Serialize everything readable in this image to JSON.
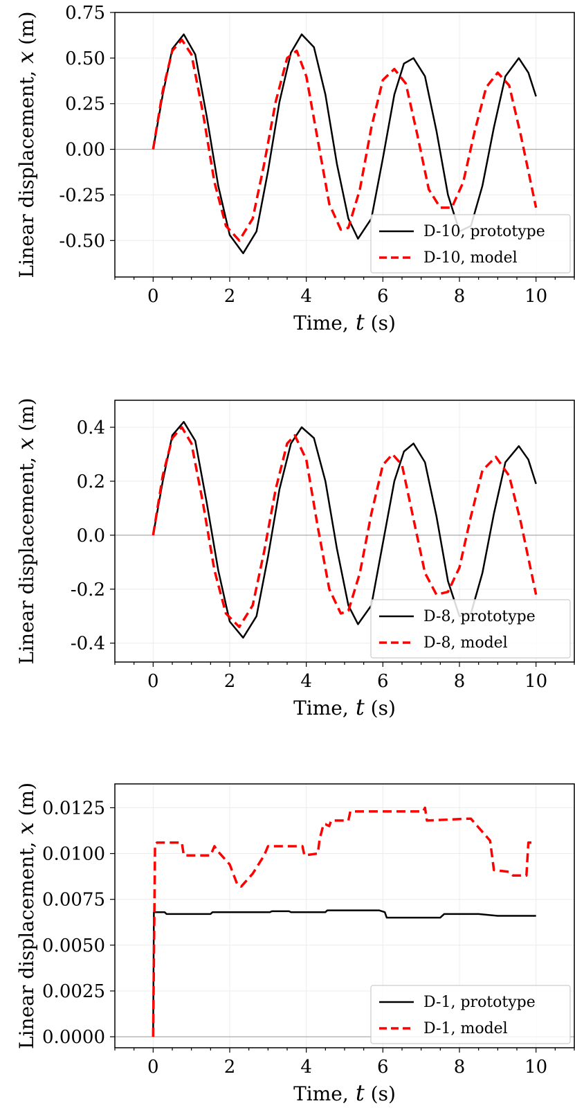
{
  "chart_data": [
    {
      "type": "line",
      "xlabel": "Time,  t  (s)",
      "ylabel": "Linear  displacement,  x  (m)",
      "xlim": [
        -1,
        11
      ],
      "ylim": [
        -0.7,
        0.75
      ],
      "xticks": [
        0,
        2,
        4,
        6,
        8,
        10
      ],
      "xtick_labels": [
        "0",
        "2",
        "4",
        "6",
        "8",
        "10"
      ],
      "yticks": [
        -0.5,
        -0.25,
        0.0,
        0.25,
        0.5,
        0.75
      ],
      "ytick_labels": [
        "-0.50",
        "-0.25",
        "0.00",
        "0.25",
        "0.50",
        "0.75"
      ],
      "grid": true,
      "legend_position": "lower-right",
      "series": [
        {
          "name": "D-10, prototype",
          "color": "#000000",
          "style": "solid",
          "x": [
            0,
            0.25,
            0.5,
            0.8,
            1.1,
            1.4,
            1.7,
            2.0,
            2.35,
            2.7,
            3.0,
            3.3,
            3.6,
            3.88,
            4.2,
            4.5,
            4.8,
            5.1,
            5.35,
            5.7,
            6.0,
            6.3,
            6.55,
            6.8,
            7.1,
            7.4,
            7.7,
            8.0,
            8.3,
            8.6,
            8.9,
            9.2,
            9.55,
            9.8,
            10.0
          ],
          "y": [
            0,
            0.3,
            0.55,
            0.63,
            0.52,
            0.18,
            -0.2,
            -0.47,
            -0.57,
            -0.45,
            -0.12,
            0.26,
            0.53,
            0.63,
            0.56,
            0.3,
            -0.08,
            -0.38,
            -0.49,
            -0.38,
            -0.05,
            0.3,
            0.47,
            0.5,
            0.4,
            0.1,
            -0.25,
            -0.45,
            -0.42,
            -0.2,
            0.12,
            0.4,
            0.5,
            0.42,
            0.29
          ]
        },
        {
          "name": "D-10, model",
          "color": "#ff0000",
          "style": "dashed",
          "x": [
            0,
            0.25,
            0.5,
            0.75,
            1.0,
            1.3,
            1.6,
            1.9,
            2.25,
            2.6,
            2.9,
            3.2,
            3.5,
            3.75,
            4.0,
            4.3,
            4.6,
            4.9,
            5.1,
            5.4,
            5.7,
            6.0,
            6.3,
            6.6,
            6.9,
            7.2,
            7.5,
            7.8,
            8.1,
            8.4,
            8.7,
            9.0,
            9.3,
            9.6,
            10.0
          ],
          "y": [
            0,
            0.32,
            0.54,
            0.6,
            0.52,
            0.2,
            -0.18,
            -0.42,
            -0.5,
            -0.38,
            -0.08,
            0.26,
            0.5,
            0.54,
            0.4,
            0.05,
            -0.3,
            -0.44,
            -0.43,
            -0.22,
            0.12,
            0.38,
            0.44,
            0.36,
            0.08,
            -0.22,
            -0.32,
            -0.32,
            -0.18,
            0.1,
            0.34,
            0.42,
            0.35,
            0.08,
            -0.32
          ]
        }
      ]
    },
    {
      "type": "line",
      "xlabel": "Time,  t  (s)",
      "ylabel": "Linear  displacement,  x  (m)",
      "xlim": [
        -1,
        11
      ],
      "ylim": [
        -0.47,
        0.5
      ],
      "xticks": [
        0,
        2,
        4,
        6,
        8,
        10
      ],
      "xtick_labels": [
        "0",
        "2",
        "4",
        "6",
        "8",
        "10"
      ],
      "yticks": [
        -0.4,
        -0.2,
        0.0,
        0.2,
        0.4
      ],
      "ytick_labels": [
        "-0.4",
        "-0.2",
        "0.0",
        "0.2",
        "0.4"
      ],
      "grid": true,
      "legend_position": "lower-right",
      "series": [
        {
          "name": "D-8, prototype",
          "color": "#000000",
          "style": "solid",
          "x": [
            0,
            0.25,
            0.5,
            0.8,
            1.1,
            1.4,
            1.7,
            2.0,
            2.35,
            2.7,
            3.0,
            3.3,
            3.6,
            3.88,
            4.2,
            4.5,
            4.8,
            5.1,
            5.35,
            5.7,
            6.0,
            6.3,
            6.55,
            6.8,
            7.1,
            7.4,
            7.7,
            8.0,
            8.3,
            8.6,
            8.9,
            9.2,
            9.55,
            9.8,
            10.0
          ],
          "y": [
            0,
            0.2,
            0.37,
            0.42,
            0.35,
            0.12,
            -0.13,
            -0.32,
            -0.38,
            -0.3,
            -0.08,
            0.17,
            0.34,
            0.4,
            0.36,
            0.2,
            -0.05,
            -0.26,
            -0.33,
            -0.26,
            -0.03,
            0.2,
            0.31,
            0.34,
            0.27,
            0.07,
            -0.17,
            -0.3,
            -0.29,
            -0.14,
            0.08,
            0.27,
            0.33,
            0.28,
            0.19
          ]
        },
        {
          "name": "D-8, model",
          "color": "#ff0000",
          "style": "dashed",
          "x": [
            0,
            0.25,
            0.5,
            0.75,
            1.0,
            1.3,
            1.6,
            1.9,
            2.25,
            2.6,
            2.9,
            3.2,
            3.5,
            3.7,
            4.0,
            4.3,
            4.6,
            4.9,
            5.1,
            5.4,
            5.7,
            6.0,
            6.25,
            6.5,
            6.8,
            7.1,
            7.4,
            7.7,
            8.0,
            8.3,
            8.6,
            8.95,
            9.3,
            9.6,
            10.0
          ],
          "y": [
            0,
            0.22,
            0.36,
            0.4,
            0.34,
            0.12,
            -0.13,
            -0.29,
            -0.34,
            -0.26,
            -0.06,
            0.17,
            0.34,
            0.37,
            0.28,
            0.03,
            -0.2,
            -0.29,
            -0.28,
            -0.14,
            0.08,
            0.26,
            0.3,
            0.26,
            0.06,
            -0.14,
            -0.22,
            -0.21,
            -0.12,
            0.07,
            0.24,
            0.29,
            0.22,
            0.05,
            -0.22
          ]
        }
      ]
    },
    {
      "type": "line",
      "xlabel": "Time,  t  (s)",
      "ylabel": "Linear  displacement,  x  (m)",
      "xlim": [
        -1,
        11
      ],
      "ylim": [
        -0.0006,
        0.0138
      ],
      "xticks": [
        0,
        2,
        4,
        6,
        8,
        10
      ],
      "xtick_labels": [
        "0",
        "2",
        "4",
        "6",
        "8",
        "10"
      ],
      "yticks": [
        0.0,
        0.0025,
        0.005,
        0.0075,
        0.01,
        0.0125
      ],
      "ytick_labels": [
        "0.0000",
        "0.0025",
        "0.0050",
        "0.0075",
        "0.0100",
        "0.0125"
      ],
      "grid": true,
      "legend_position": "lower-right",
      "series": [
        {
          "name": "D-1, prototype",
          "color": "#000000",
          "style": "solid",
          "x": [
            0,
            0.02,
            0.05,
            0.3,
            0.35,
            1.5,
            1.55,
            3.05,
            3.1,
            3.55,
            3.6,
            4.5,
            4.55,
            5.9,
            6.05,
            6.1,
            7.5,
            7.6,
            8.5,
            9.0,
            10.0
          ],
          "y": [
            0,
            0.0068,
            0.0068,
            0.0068,
            0.0067,
            0.0067,
            0.0068,
            0.0068,
            0.00685,
            0.00685,
            0.0068,
            0.0068,
            0.0069,
            0.0069,
            0.0068,
            0.0065,
            0.0065,
            0.0067,
            0.0067,
            0.0066,
            0.0066
          ]
        },
        {
          "name": "D-1, model",
          "color": "#ff0000",
          "style": "dashed",
          "x": [
            0,
            0.05,
            0.1,
            0.75,
            0.8,
            1.5,
            1.6,
            1.7,
            2.0,
            2.2,
            2.3,
            2.6,
            2.9,
            3.0,
            3.1,
            3.9,
            3.95,
            4.3,
            4.35,
            4.45,
            4.5,
            4.6,
            4.65,
            5.1,
            5.15,
            7.05,
            7.1,
            7.15,
            8.2,
            8.3,
            8.8,
            8.9,
            9.3,
            9.4,
            9.75,
            9.8,
            10.0
          ],
          "y": [
            0,
            0.0105,
            0.0106,
            0.0106,
            0.0099,
            0.0099,
            0.0104,
            0.0101,
            0.0094,
            0.0083,
            0.0082,
            0.0089,
            0.0099,
            0.0104,
            0.0104,
            0.0104,
            0.0099,
            0.01,
            0.0108,
            0.0116,
            0.0116,
            0.0115,
            0.0118,
            0.0118,
            0.0123,
            0.0123,
            0.0125,
            0.0118,
            0.0119,
            0.0119,
            0.0107,
            0.0091,
            0.009,
            0.0088,
            0.0088,
            0.0106,
            0.0106
          ]
        }
      ]
    }
  ]
}
